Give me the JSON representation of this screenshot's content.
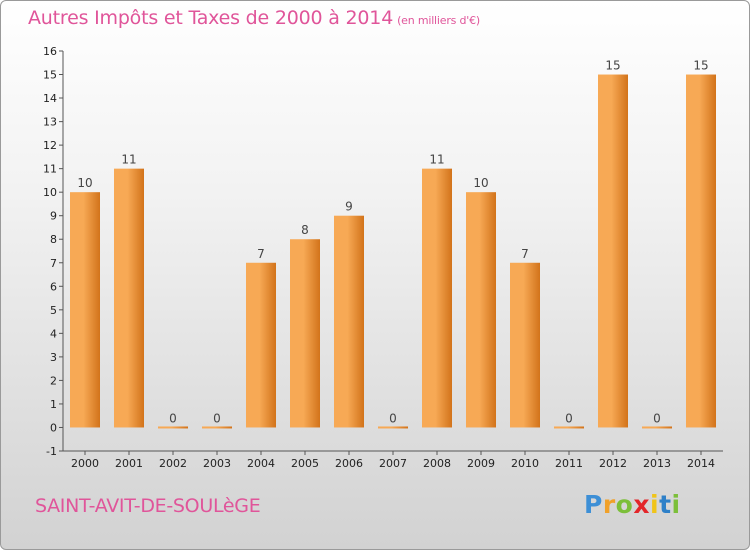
{
  "header": {
    "title": "Autres Impôts et Taxes de 2000 à 2014",
    "subtitle": "(en milliers d'€)"
  },
  "footer": {
    "commune": "SAINT-AVIT-DE-SOULèGE",
    "logo": "Proxiti"
  },
  "colors": {
    "bar_light": "#f7a955",
    "bar_dark": "#d2731a",
    "title": "#e0559a"
  },
  "chart_data": {
    "type": "bar",
    "title": "Autres Impôts et Taxes de 2000 à 2014",
    "subtitle": "(en milliers d'€)",
    "xlabel": "",
    "ylabel": "",
    "categories": [
      "2000",
      "2001",
      "2002",
      "2003",
      "2004",
      "2005",
      "2006",
      "2007",
      "2008",
      "2009",
      "2010",
      "2011",
      "2012",
      "2013",
      "2014"
    ],
    "values": [
      10,
      11,
      0,
      0,
      7,
      8,
      9,
      0,
      11,
      10,
      7,
      0,
      15,
      0,
      15
    ],
    "ylim": [
      -1,
      16
    ],
    "yticks": [
      -1,
      0,
      1,
      2,
      3,
      4,
      5,
      6,
      7,
      8,
      9,
      10,
      11,
      12,
      13,
      14,
      15,
      16
    ],
    "grid": false,
    "data_labels": true
  }
}
